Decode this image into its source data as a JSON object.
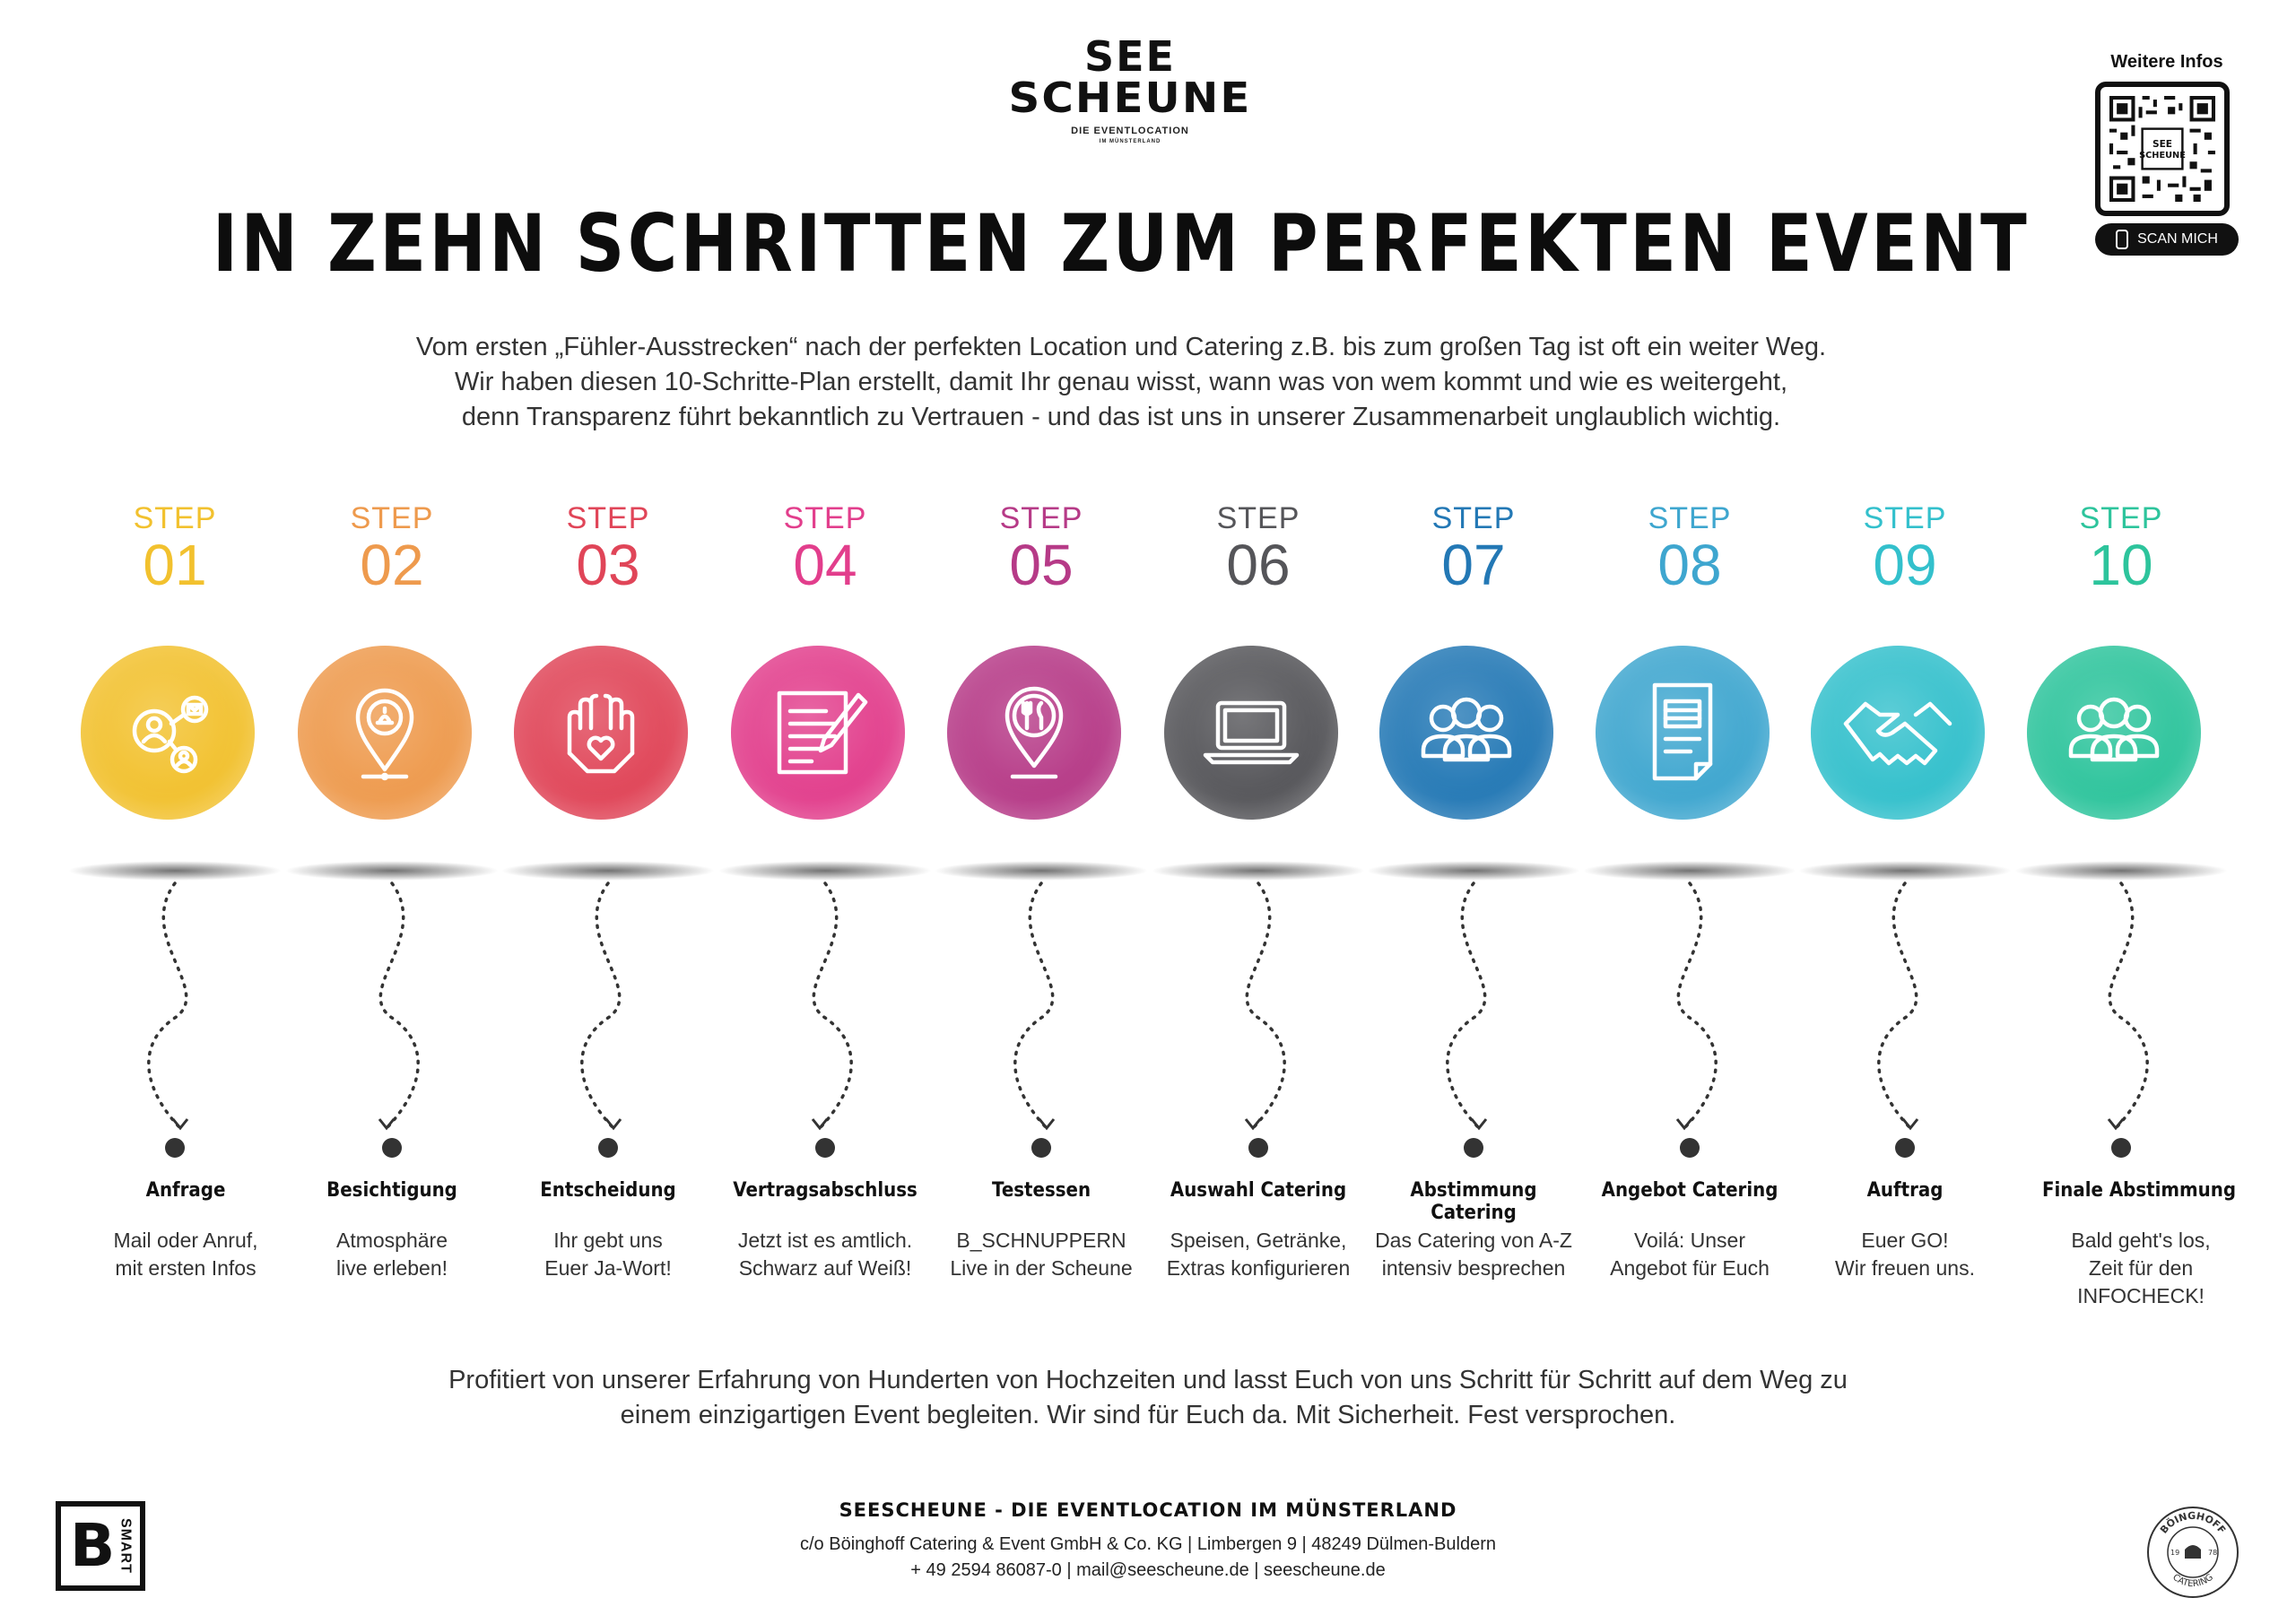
{
  "logo": {
    "line1": "SEE",
    "line2": "SCHEUNE",
    "line3": "DIE EVENTLOCATION",
    "line4": "IM MÜNSTERLAND"
  },
  "qr": {
    "title": "Weitere Infos",
    "button": "SCAN MICH",
    "center_label": "SEE SCHEUNE"
  },
  "headline": "IN ZEHN SCHRITTEN ZUM PERFEKTEN EVENT",
  "intro": [
    "Vom ersten „Fühler-Ausstrecken“ nach der perfekten Location und Catering z.B. bis zum großen Tag ist oft ein weiter Weg.",
    "Wir haben diesen 10-Schritte-Plan erstellt, damit Ihr genau wisst, wann was von wem kommt und wie es weitergeht,",
    "denn Transparenz führt bekanntlich zu Vertrauen - und das ist uns in unserer Zusammenarbeit unglaublich wichtig."
  ],
  "steps": [
    {
      "label": "STEP",
      "num": "01",
      "color": "#F2C12E",
      "icon": "network-people-icon",
      "title": "Anfrage",
      "desc1": "Mail oder Anruf,",
      "desc2": "mit ersten Infos"
    },
    {
      "label": "STEP",
      "num": "02",
      "color": "#EE9A4D",
      "icon": "location-pin-icon",
      "title": "Besichtigung",
      "desc1": "Atmosphäre",
      "desc2": "live erleben!"
    },
    {
      "label": "STEP",
      "num": "03",
      "color": "#E04558",
      "icon": "hands-heart-icon",
      "title": "Entscheidung",
      "desc1": "Ihr gebt uns",
      "desc2": "Euer Ja-Wort!"
    },
    {
      "label": "STEP",
      "num": "04",
      "color": "#E23E8C",
      "icon": "contract-pen-icon",
      "title": "Vertragsabschluss",
      "desc1": "Jetzt ist es amtlich.",
      "desc2": "Schwarz auf Weiß!"
    },
    {
      "label": "STEP",
      "num": "05",
      "color": "#B63A87",
      "icon": "food-pin-icon",
      "title": "Testessen",
      "desc1": "B_SCHNUPPERN",
      "desc2": "Live in der Scheune"
    },
    {
      "label": "STEP",
      "num": "06",
      "color": "#555559",
      "icon": "laptop-icon",
      "title": "Auswahl Catering",
      "desc1": "Speisen, Getränke,",
      "desc2": "Extras konfigurieren"
    },
    {
      "label": "STEP",
      "num": "07",
      "color": "#2378B5",
      "icon": "group-icon",
      "title": "Abstimmung Catering",
      "desc1": "Das Catering von A-Z",
      "desc2": "intensiv besprechen"
    },
    {
      "label": "STEP",
      "num": "08",
      "color": "#3EA6CF",
      "icon": "document-icon",
      "title": "Angebot Catering",
      "desc1": "Voilá: Unser",
      "desc2": "Angebot für Euch"
    },
    {
      "label": "STEP",
      "num": "09",
      "color": "#33C0CC",
      "icon": "handshake-icon",
      "title": "Auftrag",
      "desc1": "Euer GO!",
      "desc2": "Wir freuen uns."
    },
    {
      "label": "STEP",
      "num": "10",
      "color": "#2DC49C",
      "icon": "group-icon",
      "title": "Finale Abstimmung",
      "desc1": "Bald geht's los,",
      "desc2": "Zeit für den INFOCHECK!"
    }
  ],
  "outro": [
    "Profitiert von unserer Erfahrung von Hunderten von Hochzeiten und lasst Euch von uns Schritt für Schritt auf dem Weg zu",
    "einem einzigartigen Event begleiten. Wir sind für Euch da. Mit Sicherheit. Fest versprochen."
  ],
  "footer": {
    "title": "SEESCHEUNE - DIE EVENTLOCATION IM MÜNSTERLAND",
    "address": "c/o Böinghoff Catering & Event GmbH & Co. KG | Limbergen 9 | 48249 Dülmen-Buldern",
    "contact": "+ 49 2594 86087-0 | mail@seescheune.de | seescheune.de"
  },
  "bsmart": {
    "letter": "B",
    "word": "SMART"
  },
  "boinghoff": {
    "name": "BÖINGHOFF",
    "sub": "CATERING",
    "year_left": "19",
    "year_right": "78"
  }
}
